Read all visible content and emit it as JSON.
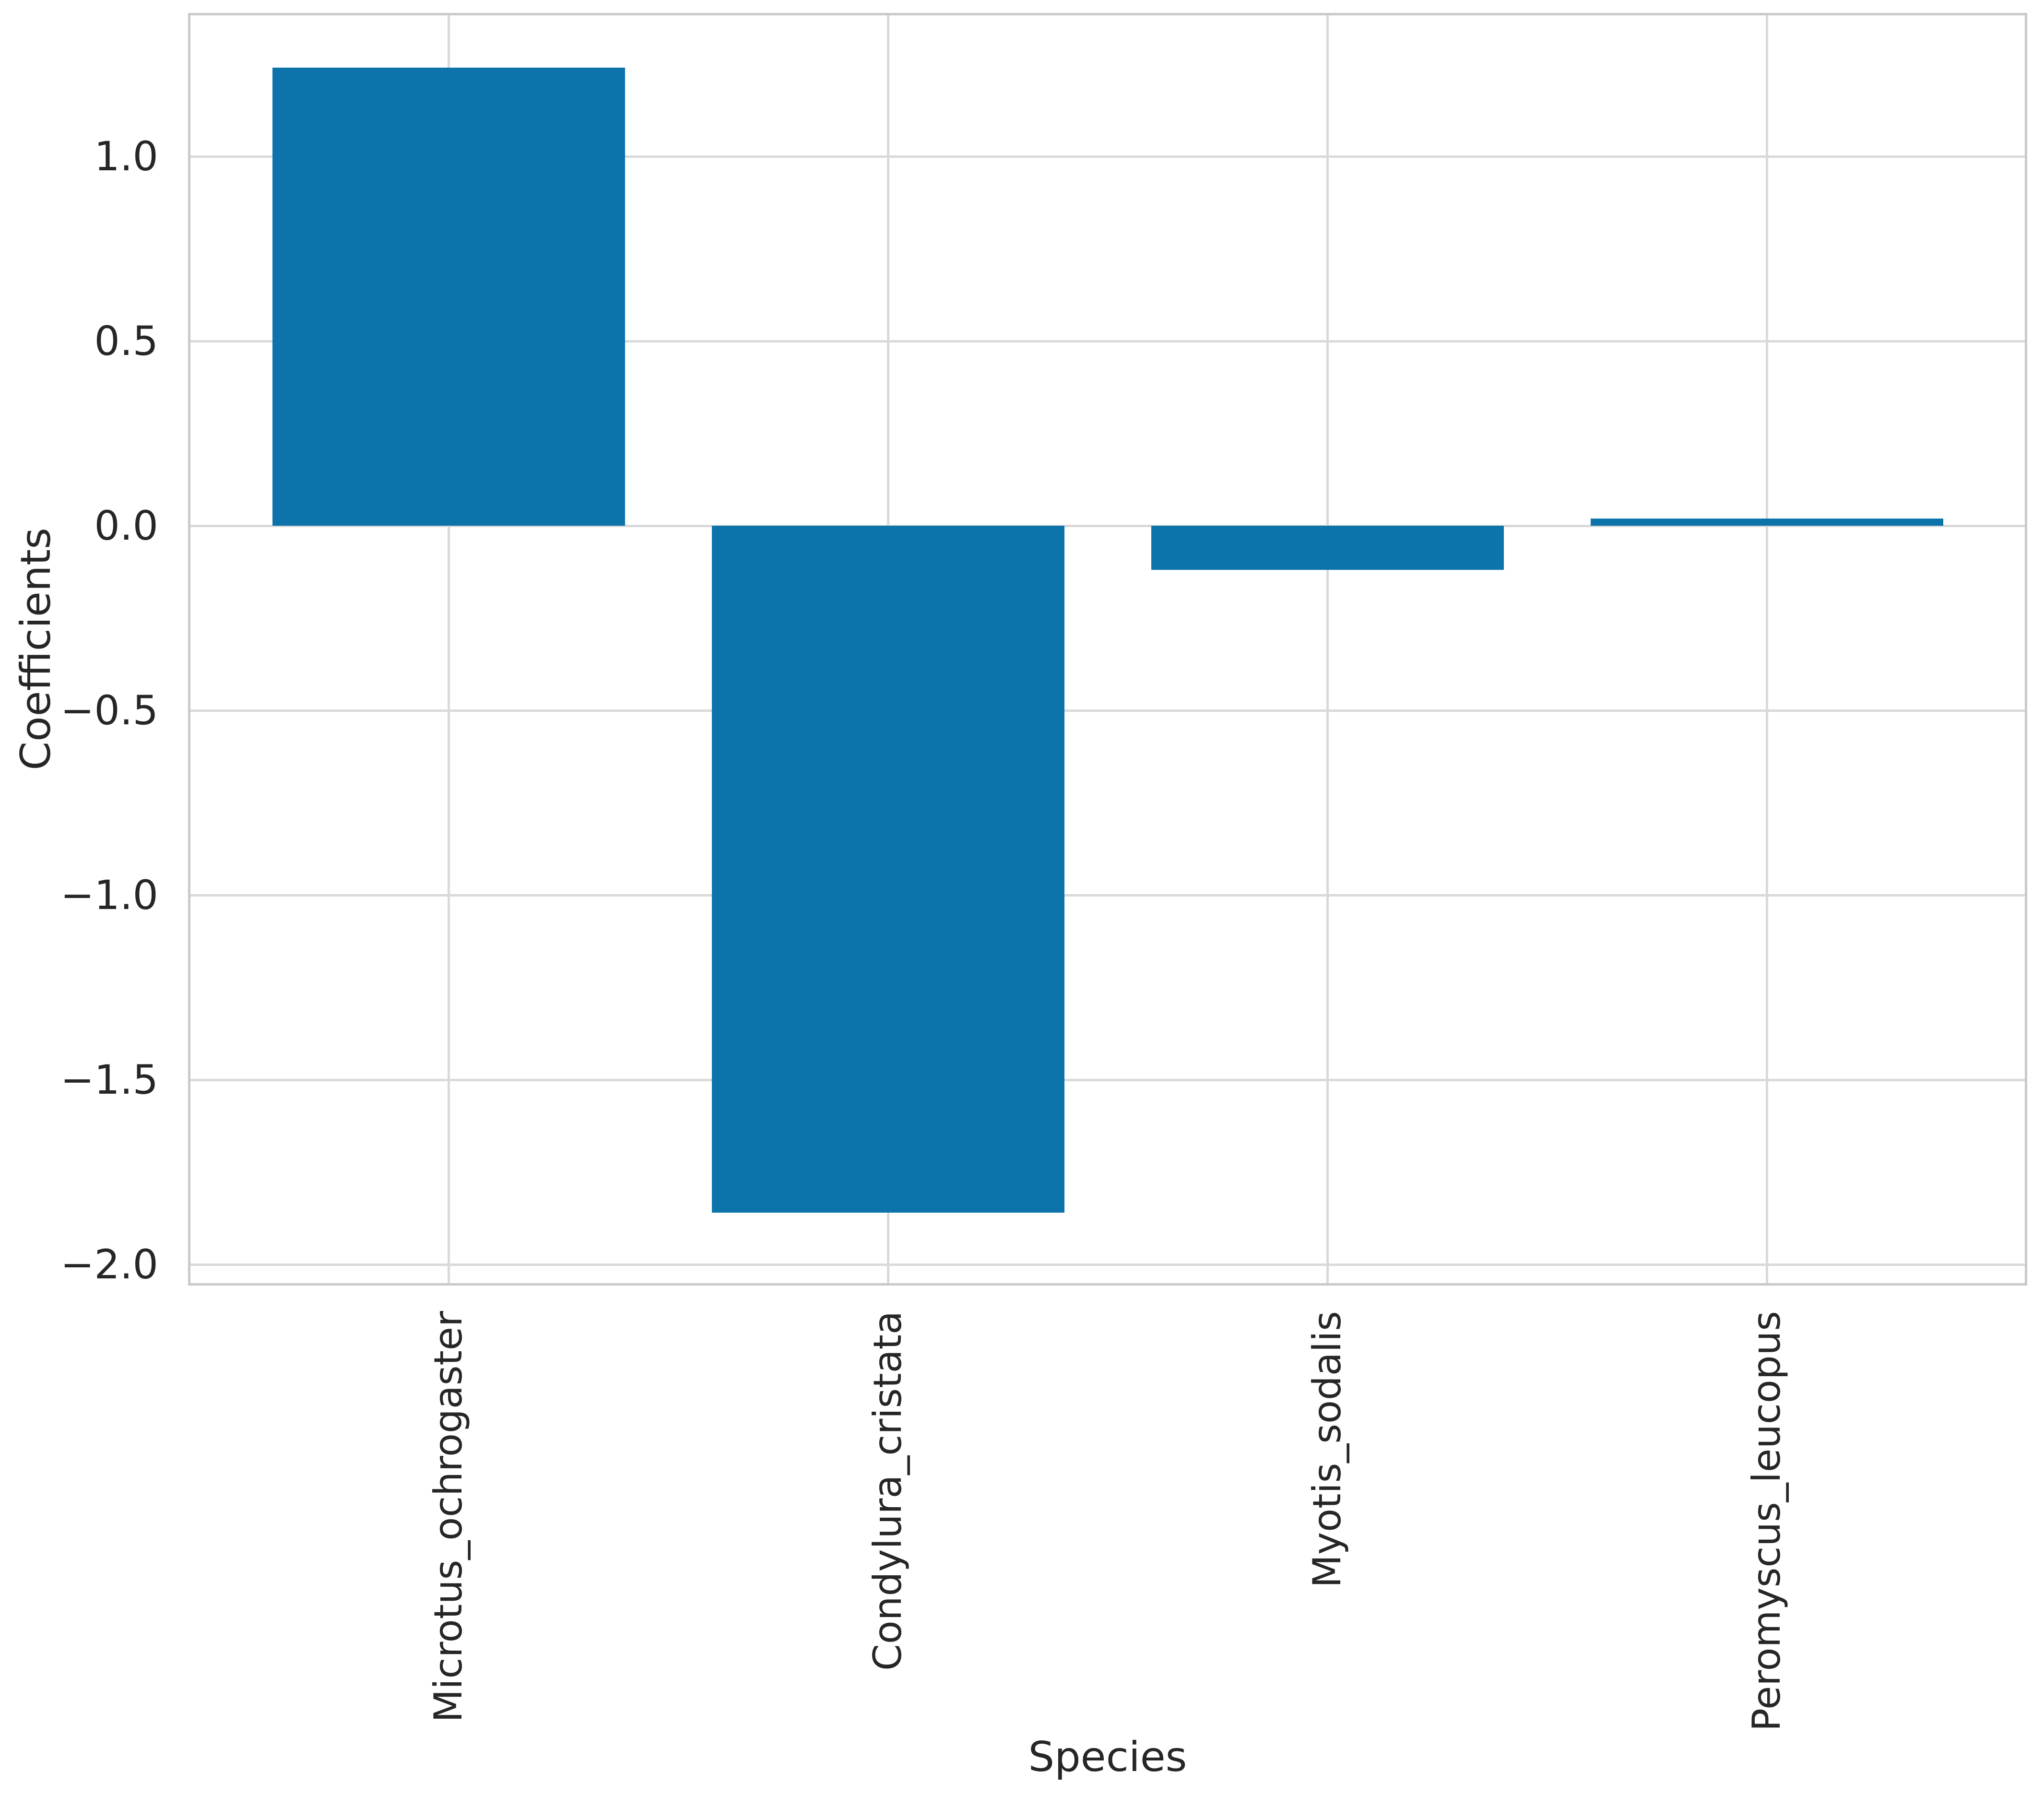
{
  "chart_data": {
    "type": "bar",
    "title": "",
    "categories": [
      "Microtus_ochrogaster",
      "Condylura_cristata",
      "Myotis_sodalis",
      "Peromyscus_leucopus"
    ],
    "values": [
      1.24,
      -1.86,
      -0.12,
      0.02
    ],
    "xlabel": "Species",
    "ylabel": "Coefficients",
    "ylim": [
      -2.06,
      1.39
    ],
    "yticks": [
      1.0,
      0.5,
      0.0,
      -0.5,
      -1.0,
      -1.5,
      -2.0
    ],
    "ytick_labels": [
      "1.0",
      "0.5",
      "0.0",
      "−0.5",
      "−1.0",
      "−1.5",
      "−2.0"
    ],
    "grid": true,
    "legend_position": "none",
    "bar_color": "#0d74ab",
    "grid_color": "#d9d9d9",
    "spine_color": "#c9c9c9",
    "text_color": "#262626",
    "background_color": "#ffffff"
  }
}
